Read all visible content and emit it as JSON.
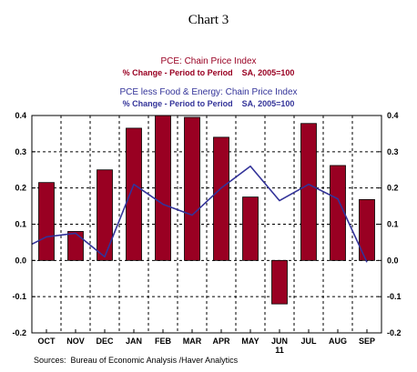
{
  "chart_data": {
    "type": "bar",
    "chart_label": "Chart 3",
    "legend": [
      {
        "series": "PCE: Chain Price Index",
        "subtitle": "% Change - Period to Period    SA, 2005=100",
        "color": "#990022",
        "style": "bar"
      },
      {
        "series": "PCE less Food & Energy: Chain Price Index",
        "subtitle": "% Change - Period to Period    SA, 2005=100",
        "color": "#333399",
        "style": "line"
      }
    ],
    "categories": [
      "OCT",
      "NOV",
      "DEC",
      "JAN",
      "FEB",
      "MAR",
      "APR",
      "MAY",
      "JUN",
      "JUL",
      "AUG",
      "SEP"
    ],
    "year_label": "11",
    "year_label_under": "JUN",
    "series": [
      {
        "name": "PCE: Chain Price Index",
        "type": "bar",
        "values": [
          0.215,
          0.08,
          0.25,
          0.365,
          0.4,
          0.395,
          0.34,
          0.175,
          -0.12,
          0.378,
          0.262,
          0.168
        ]
      },
      {
        "name": "PCE less Food & Energy: Chain Price Index",
        "type": "line",
        "values": [
          0.065,
          0.075,
          0.01,
          0.21,
          0.155,
          0.125,
          0.2,
          0.26,
          0.165,
          0.21,
          0.17,
          -0.005
        ],
        "line_start_value": 0.045
      }
    ],
    "ylim": [
      -0.2,
      0.4
    ],
    "yticks": [
      "0.4",
      "0.3",
      "0.2",
      "0.1",
      "0.0",
      "-0.1",
      "-0.2"
    ],
    "ytick_values": [
      0.4,
      0.3,
      0.2,
      0.1,
      0.0,
      -0.1,
      -0.2
    ],
    "grid": true,
    "axes_on_both_sides": true,
    "source": "Sources:  Bureau of Economic Analysis /Haver Analytics"
  }
}
